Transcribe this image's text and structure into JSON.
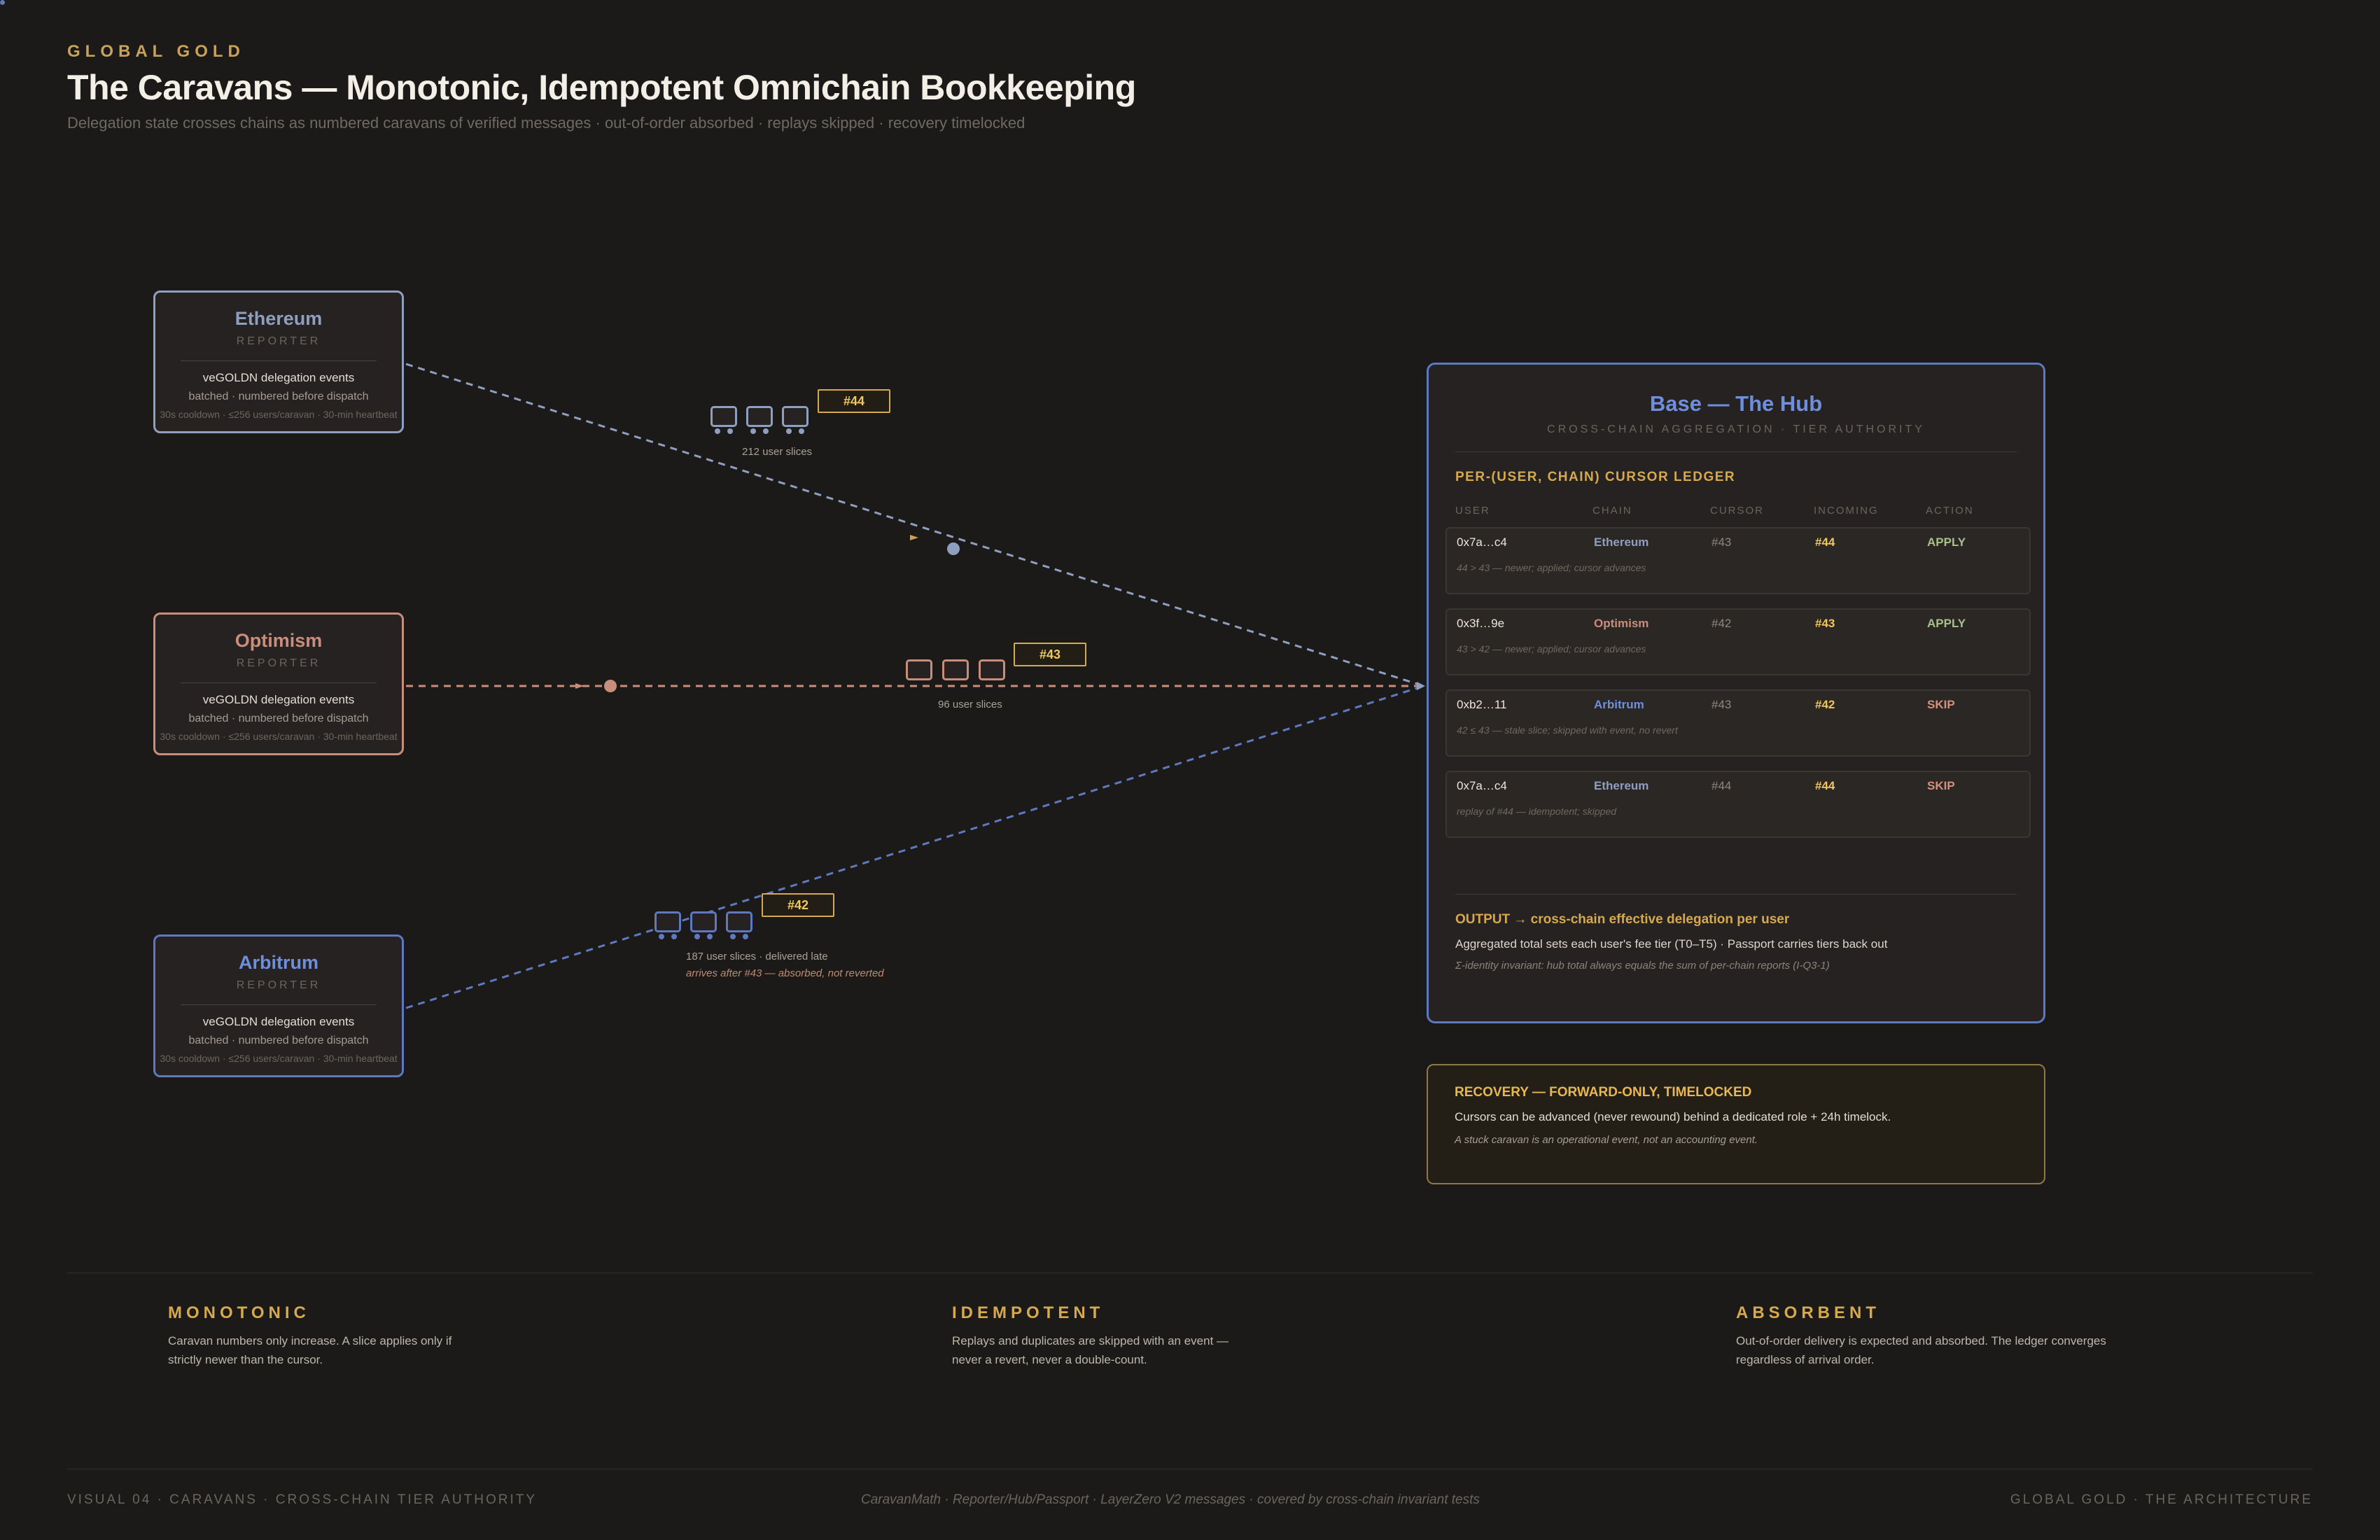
{
  "header": {
    "eyebrow": "GLOBAL GOLD",
    "title": "The Caravans — Monotonic, Idempotent Omnichain Bookkeeping",
    "subtitle": "Delegation state crosses chains as numbered caravans of verified messages · out-of-order absorbed · replays skipped · recovery timelocked"
  },
  "colors": {
    "ethereum": "#8f9fc0",
    "optimism": "#c98d7c",
    "arbitrum": "#5e79bf",
    "gold": "#d6a94f",
    "apply": "#a8c08a",
    "skip": "#d88f7c"
  },
  "reporters": [
    {
      "name": "Ethereum",
      "role": "REPORTER",
      "events": "veGOLDN delegation events",
      "batch": "batched · numbered before dispatch",
      "meta": "30s cooldown · ≤256 users/caravan · 30-min heartbeat"
    },
    {
      "name": "Optimism",
      "role": "REPORTER",
      "events": "veGOLDN delegation events",
      "batch": "batched · numbered before dispatch",
      "meta": "30s cooldown · ≤256 users/caravan · 30-min heartbeat"
    },
    {
      "name": "Arbitrum",
      "role": "REPORTER",
      "events": "veGOLDN delegation events",
      "batch": "batched · numbered before dispatch",
      "meta": "30s cooldown · ≤256 users/caravan · 30-min heartbeat"
    }
  ],
  "caravans": [
    {
      "number": "#44",
      "slices": "212 user slices",
      "note": ""
    },
    {
      "number": "#43",
      "slices": "96 user slices",
      "note": ""
    },
    {
      "number": "#42",
      "slices": "187 user slices · delivered late",
      "note": "arrives after #43 — absorbed, not reverted"
    }
  ],
  "hub": {
    "title": "Base — The Hub",
    "subtitle": "CROSS-CHAIN AGGREGATION · TIER AUTHORITY",
    "ledger_title": "PER-(USER, CHAIN) CURSOR LEDGER",
    "columns": [
      "USER",
      "CHAIN",
      "CURSOR",
      "INCOMING",
      "ACTION"
    ],
    "rows": [
      {
        "user": "0x7a…c4",
        "chain": "Ethereum",
        "cursor": "#43",
        "incoming": "#44",
        "action": "APPLY",
        "note": "44 > 43 — newer; applied; cursor advances"
      },
      {
        "user": "0x3f…9e",
        "chain": "Optimism",
        "cursor": "#42",
        "incoming": "#43",
        "action": "APPLY",
        "note": "43 > 42 — newer; applied; cursor advances"
      },
      {
        "user": "0xb2…11",
        "chain": "Arbitrum",
        "cursor": "#43",
        "incoming": "#42",
        "action": "SKIP",
        "note": "42 ≤ 43 — stale slice; skipped with event, no revert"
      },
      {
        "user": "0x7a…c4",
        "chain": "Ethereum",
        "cursor": "#44",
        "incoming": "#44",
        "action": "SKIP",
        "note": "replay of #44 — idempotent; skipped"
      }
    ],
    "output_title": "OUTPUT → cross-chain effective delegation per user",
    "output_text": "Aggregated total sets each user's fee tier (T0–T5) · Passport carries tiers back out",
    "output_note": "Σ-identity invariant: hub total always equals the sum of per-chain reports (I-Q3-1)"
  },
  "recovery": {
    "title": "RECOVERY — FORWARD-ONLY, TIMELOCKED",
    "text": "Cursors can be advanced (never rewound) behind a dedicated role + 24h timelock.",
    "note": "A stuck caravan is an operational event, not an accounting event."
  },
  "principles": [
    {
      "title": "MONOTONIC",
      "text": "Caravan numbers only increase. A slice applies only if strictly newer than the cursor."
    },
    {
      "title": "IDEMPOTENT",
      "text": "Replays and duplicates are skipped with an event — never a revert, never a double-count."
    },
    {
      "title": "ABSORBENT",
      "text": "Out-of-order delivery is expected and absorbed. The ledger converges regardless of arrival order."
    }
  ],
  "footer": {
    "left": "VISUAL 04 · CARAVANS · CROSS-CHAIN TIER AUTHORITY",
    "center": "CaravanMath · Reporter/Hub/Passport · LayerZero V2 messages · covered by cross-chain invariant tests",
    "right": "GLOBAL GOLD · THE ARCHITECTURE"
  }
}
